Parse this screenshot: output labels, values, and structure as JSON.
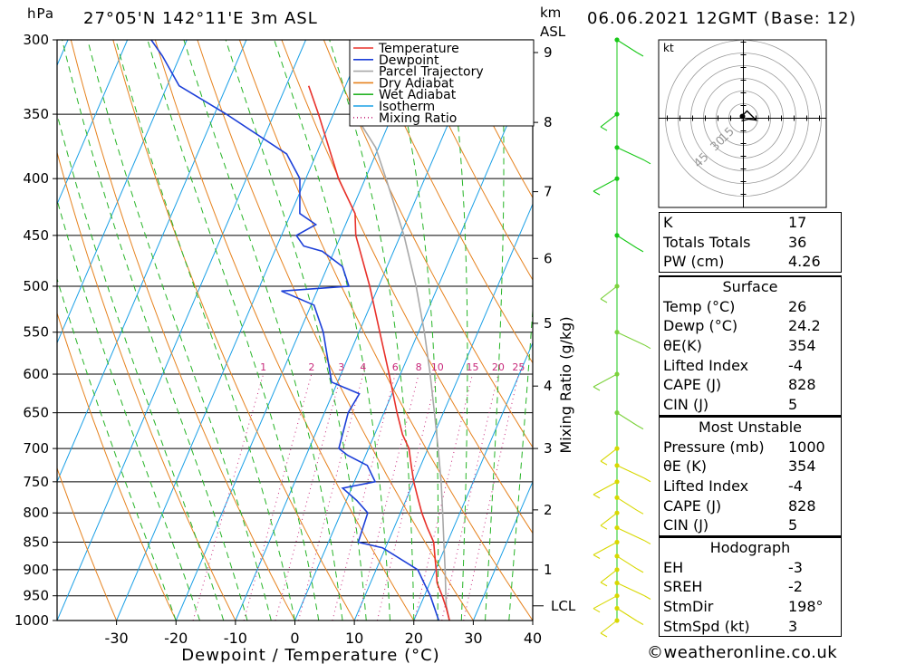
{
  "header": {
    "pressure_unit": "hPa",
    "location": "27°05'N  142°11'E  3m  ASL",
    "km_unit": "km",
    "asl_unit": "ASL",
    "datetime": "06.06.2021  12GMT  (Base: 12)"
  },
  "legend": {
    "items": [
      {
        "label": "Temperature",
        "color": "#e8302a",
        "style": "solid"
      },
      {
        "label": "Dewpoint",
        "color": "#1c3fd8",
        "style": "solid"
      },
      {
        "label": "Parcel Trajectory",
        "color": "#a8a8a8",
        "style": "solid"
      },
      {
        "label": "Dry Adiabat",
        "color": "#e6821e",
        "style": "solid"
      },
      {
        "label": "Wet Adiabat",
        "color": "#26b426",
        "style": "solid"
      },
      {
        "label": "Isotherm",
        "color": "#1aa0e6",
        "style": "solid"
      },
      {
        "label": "Mixing Ratio",
        "color": "#c8287a",
        "style": "dotted"
      }
    ]
  },
  "chart_data": {
    "type": "line",
    "title": "",
    "xlabel": "Dewpoint / Temperature (°C)",
    "ylabel": "hPa",
    "secondary_ylabel": "Mixing Ratio (g/kg)",
    "x_ticks": [
      -30,
      -20,
      -10,
      0,
      10,
      20,
      30,
      40
    ],
    "x_range": [
      -40,
      40
    ],
    "pressure_levels": [
      300,
      350,
      400,
      450,
      500,
      550,
      600,
      650,
      700,
      750,
      800,
      850,
      900,
      950,
      1000
    ],
    "pressure_range": [
      300,
      1000
    ],
    "skew_per_log_decade": 80,
    "km_ticks": [
      {
        "label": "1",
        "p": 900
      },
      {
        "label": "2",
        "p": 795
      },
      {
        "label": "3",
        "p": 700
      },
      {
        "label": "4",
        "p": 615
      },
      {
        "label": "5",
        "p": 540
      },
      {
        "label": "6",
        "p": 472
      },
      {
        "label": "7",
        "p": 411
      },
      {
        "label": "8",
        "p": 356
      },
      {
        "label": "9",
        "p": 308
      }
    ],
    "lcl": {
      "label": "LCL",
      "p": 970
    },
    "mixing_ratio_labels": [
      "1",
      "2",
      "3",
      "4",
      "6",
      "8",
      "10",
      "15",
      "20",
      "25"
    ],
    "mixing_ratio_values": [
      1,
      2,
      3,
      4,
      6,
      8,
      10,
      15,
      20,
      25
    ],
    "mixing_ratio_label_p": 600,
    "series": [
      {
        "name": "Temperature",
        "color": "#e8302a",
        "points": [
          [
            1000,
            26.0
          ],
          [
            975,
            24.6
          ],
          [
            950,
            23.0
          ],
          [
            925,
            21.2
          ],
          [
            900,
            20.1
          ],
          [
            875,
            18.9
          ],
          [
            850,
            17.7
          ],
          [
            825,
            15.6
          ],
          [
            800,
            13.6
          ],
          [
            775,
            11.8
          ],
          [
            750,
            10.0
          ],
          [
            725,
            8.4
          ],
          [
            700,
            6.8
          ],
          [
            680,
            4.7
          ],
          [
            650,
            2.2
          ],
          [
            600,
            -1.9
          ],
          [
            550,
            -6.5
          ],
          [
            500,
            -11.5
          ],
          [
            450,
            -17.5
          ],
          [
            430,
            -19.2
          ],
          [
            400,
            -24.5
          ],
          [
            350,
            -32.5
          ],
          [
            330,
            -36.2
          ]
        ]
      },
      {
        "name": "Dewpoint",
        "color": "#1c3fd8",
        "points": [
          [
            1000,
            24.2
          ],
          [
            950,
            21.0
          ],
          [
            925,
            19.0
          ],
          [
            900,
            17.0
          ],
          [
            860,
            9.5
          ],
          [
            850,
            5.0
          ],
          [
            800,
            4.5
          ],
          [
            780,
            1.8
          ],
          [
            760,
            -1.5
          ],
          [
            750,
            3.5
          ],
          [
            725,
            1.0
          ],
          [
            710,
            -3.0
          ],
          [
            700,
            -5.0
          ],
          [
            650,
            -6.0
          ],
          [
            625,
            -5.5
          ],
          [
            610,
            -11.0
          ],
          [
            550,
            -16.0
          ],
          [
            520,
            -19.5
          ],
          [
            505,
            -26.0
          ],
          [
            500,
            -15.0
          ],
          [
            480,
            -17.5
          ],
          [
            465,
            -22.0
          ],
          [
            460,
            -25.5
          ],
          [
            450,
            -27.5
          ],
          [
            440,
            -25.0
          ],
          [
            430,
            -28.5
          ],
          [
            400,
            -31.0
          ],
          [
            380,
            -35.0
          ],
          [
            350,
            -48.0
          ],
          [
            330,
            -58.0
          ],
          [
            310,
            -63.0
          ],
          [
            300,
            -66.0
          ]
        ]
      },
      {
        "name": "Parcel Trajectory",
        "color": "#a8a8a8",
        "points": [
          [
            1000,
            26.0
          ],
          [
            970,
            24.4
          ],
          [
            950,
            23.6
          ],
          [
            900,
            21.6
          ],
          [
            850,
            19.4
          ],
          [
            800,
            17.1
          ],
          [
            750,
            14.6
          ],
          [
            700,
            11.7
          ],
          [
            650,
            8.5
          ],
          [
            600,
            5.0
          ],
          [
            550,
            1.0
          ],
          [
            500,
            -3.7
          ],
          [
            450,
            -9.4
          ],
          [
            400,
            -16.5
          ],
          [
            375,
            -20.5
          ],
          [
            360,
            -24.0
          ],
          [
            350,
            -26.5
          ]
        ]
      }
    ]
  },
  "wind_profile": {
    "color_low": "#d8d800",
    "color_mid": "#7cd23c",
    "color_high": "#18c818",
    "levels_p": [
      1000,
      975,
      950,
      925,
      900,
      875,
      850,
      825,
      800,
      775,
      750,
      725,
      700,
      650,
      600,
      550,
      500,
      450,
      400,
      375,
      350,
      300
    ]
  },
  "hodograph": {
    "unit_label": "kt",
    "ring_labels": [
      "15",
      "30",
      "45"
    ]
  },
  "indices": [
    {
      "label": "K",
      "value": "17"
    },
    {
      "label": "Totals Totals",
      "value": "36"
    },
    {
      "label": "PW (cm)",
      "value": "4.26"
    }
  ],
  "surface": {
    "title": "Surface",
    "rows": [
      {
        "label": "Temp (°C)",
        "value": "26"
      },
      {
        "label": "Dewp (°C)",
        "value": "24.2"
      },
      {
        "label": "θE(K)",
        "value": "354"
      },
      {
        "label": "Lifted Index",
        "value": "-4"
      },
      {
        "label": "CAPE (J)",
        "value": "828"
      },
      {
        "label": "CIN (J)",
        "value": "5"
      }
    ]
  },
  "most_unstable": {
    "title": "Most Unstable",
    "rows": [
      {
        "label": "Pressure (mb)",
        "value": "1000"
      },
      {
        "label": "θE (K)",
        "value": "354"
      },
      {
        "label": "Lifted Index",
        "value": "-4"
      },
      {
        "label": "CAPE (J)",
        "value": "828"
      },
      {
        "label": "CIN (J)",
        "value": "5"
      }
    ]
  },
  "hodograph_table": {
    "title": "Hodograph",
    "rows": [
      {
        "label": "EH",
        "value": "-3"
      },
      {
        "label": "SREH",
        "value": "-2"
      },
      {
        "label": "StmDir",
        "value": "198°"
      },
      {
        "label": "StmSpd (kt)",
        "value": "3"
      }
    ]
  },
  "credit": "©weatheronline.co.uk"
}
